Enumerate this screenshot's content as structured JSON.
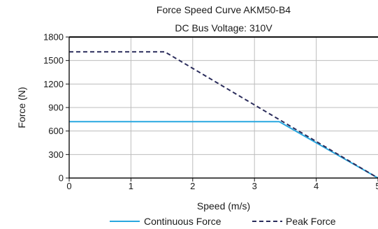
{
  "chart_data": {
    "type": "line",
    "title": "Force Speed Curve AKM50-B4",
    "subtitle": "DC Bus Voltage: 310V",
    "xlabel": "Speed (m/s)",
    "ylabel": "Force (N)",
    "xlim": [
      0,
      5
    ],
    "ylim": [
      0,
      1800
    ],
    "xticks": [
      0,
      1,
      2,
      3,
      4,
      5
    ],
    "xtick_labels": [
      "0",
      "1",
      "2",
      "3",
      "4",
      "5"
    ],
    "yticks": [
      0,
      300,
      600,
      900,
      1200,
      1500,
      1800
    ],
    "ytick_labels": [
      "0",
      "300",
      "600",
      "900",
      "1200",
      "1500",
      "1800"
    ],
    "grid": true,
    "legend_position": "bottom",
    "series": [
      {
        "name": "Continuous Force",
        "color": "#29a8e0",
        "style": "solid",
        "x": [
          0,
          3.4,
          5
        ],
        "y": [
          720,
          720,
          0
        ]
      },
      {
        "name": "Peak Force",
        "color": "#2b2d5c",
        "style": "dashed",
        "x": [
          0,
          1.55,
          5
        ],
        "y": [
          1610,
          1610,
          0
        ]
      }
    ]
  }
}
